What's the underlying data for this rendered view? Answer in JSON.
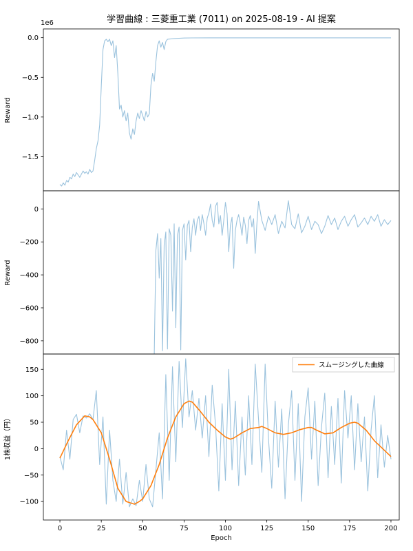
{
  "title": "学習曲線 : 三菱重工業 (7011) on 2025-08-19 - AI 提案",
  "colors": {
    "raw_line": "#1f77b4",
    "smooth_line": "#ff7f0e",
    "axis": "#000000"
  },
  "chart_data": [
    {
      "type": "line",
      "ylabel": "Reward",
      "y_offset_label": "1e6",
      "ylim": [
        -1.93,
        0.11
      ],
      "yticks": [
        0.0,
        -0.5,
        -1.0,
        -1.5
      ],
      "ytick_labels": [
        "0.0",
        "−0.5",
        "−1.0",
        "−1.5"
      ],
      "xlim": [
        -10,
        205
      ],
      "grid": false,
      "series": [
        {
          "name": "reward-raw",
          "color": "#1f77b4",
          "opacity": 0.45,
          "width": 1.1,
          "x": [
            0,
            1,
            2,
            3,
            4,
            5,
            6,
            7,
            8,
            9,
            10,
            11,
            12,
            13,
            14,
            15,
            16,
            17,
            18,
            19,
            20,
            21,
            22,
            23,
            24,
            25,
            26,
            27,
            28,
            29,
            30,
            31,
            32,
            33,
            34,
            35,
            36,
            37,
            38,
            39,
            40,
            41,
            42,
            43,
            44,
            45,
            46,
            47,
            48,
            49,
            50,
            51,
            52,
            53,
            54,
            55,
            56,
            57,
            58,
            59,
            60,
            61,
            62,
            63,
            64,
            65,
            70,
            75,
            80,
            90,
            100,
            110,
            120,
            130,
            140,
            150,
            160,
            170,
            180,
            190,
            200
          ],
          "y": [
            -1.85,
            -1.87,
            -1.83,
            -1.86,
            -1.8,
            -1.82,
            -1.76,
            -1.78,
            -1.72,
            -1.75,
            -1.7,
            -1.73,
            -1.76,
            -1.72,
            -1.68,
            -1.71,
            -1.69,
            -1.72,
            -1.66,
            -1.7,
            -1.68,
            -1.55,
            -1.4,
            -1.3,
            -1.1,
            -0.6,
            -0.15,
            -0.04,
            -0.02,
            -0.05,
            -0.02,
            -0.1,
            -0.04,
            -0.25,
            -0.1,
            -0.45,
            -0.9,
            -0.85,
            -1.0,
            -0.92,
            -1.05,
            -0.95,
            -1.2,
            -1.28,
            -1.15,
            -1.22,
            -1.05,
            -0.95,
            -1.02,
            -0.92,
            -0.98,
            -1.05,
            -0.93,
            -1.0,
            -0.96,
            -0.6,
            -0.45,
            -0.55,
            -0.3,
            -0.1,
            -0.04,
            -0.12,
            -0.06,
            -0.15,
            -0.05,
            -0.02,
            -0.01,
            -0.005,
            -0.003,
            -0.002,
            -0.002,
            -0.002,
            -0.002,
            -0.002,
            -0.002,
            -0.002,
            -0.002,
            -0.002,
            -0.002,
            -0.002,
            -0.002
          ]
        }
      ]
    },
    {
      "type": "line",
      "ylabel": "Reward",
      "ylim": [
        -880,
        110
      ],
      "yticks": [
        0,
        -200,
        -400,
        -600,
        -800
      ],
      "ytick_labels": [
        "0",
        "−200",
        "−400",
        "−600",
        "−800"
      ],
      "xlim": [
        -10,
        205
      ],
      "grid": false,
      "series": [
        {
          "name": "reward-zoom",
          "color": "#1f77b4",
          "opacity": 0.45,
          "width": 1.1,
          "x": [
            57,
            58,
            59,
            60,
            61,
            62,
            63,
            64,
            65,
            66,
            67,
            68,
            69,
            70,
            71,
            72,
            73,
            74,
            75,
            76,
            77,
            78,
            79,
            80,
            81,
            82,
            83,
            84,
            85,
            86,
            87,
            88,
            89,
            90,
            91,
            92,
            93,
            94,
            95,
            96,
            97,
            98,
            99,
            100,
            101,
            102,
            103,
            104,
            105,
            106,
            107,
            108,
            109,
            110,
            111,
            112,
            113,
            114,
            115,
            116,
            117,
            118,
            119,
            120,
            122,
            124,
            126,
            128,
            130,
            132,
            134,
            136,
            138,
            140,
            142,
            144,
            146,
            148,
            150,
            152,
            154,
            156,
            158,
            160,
            162,
            164,
            166,
            168,
            170,
            172,
            174,
            176,
            178,
            180,
            182,
            184,
            186,
            188,
            190,
            192,
            194,
            196,
            198,
            200
          ],
          "y": [
            -880,
            -250,
            -150,
            -420,
            -180,
            -860,
            -220,
            -140,
            -850,
            -120,
            -160,
            -620,
            -90,
            -720,
            -160,
            -110,
            -855,
            -130,
            -90,
            -310,
            -100,
            -70,
            -260,
            -110,
            -60,
            -160,
            -70,
            -45,
            -130,
            -35,
            -90,
            -160,
            -55,
            -25,
            30,
            -70,
            -110,
            15,
            40,
            -90,
            -40,
            -160,
            -70,
            40,
            -30,
            -260,
            -100,
            -50,
            -360,
            -130,
            -70,
            -35,
            -90,
            -160,
            -50,
            -100,
            -210,
            -70,
            -40,
            -110,
            -60,
            -270,
            -90,
            45,
            -70,
            -130,
            -45,
            -95,
            -35,
            -150,
            -75,
            -115,
            50,
            -95,
            -120,
            -30,
            -145,
            -105,
            -45,
            -125,
            -75,
            -95,
            -150,
            -105,
            -40,
            -95,
            -55,
            -125,
            -75,
            -45,
            -105,
            -65,
            -35,
            -110,
            -85,
            -55,
            -95,
            -45,
            -75,
            -35,
            -105,
            -65,
            -95,
            -70
          ]
        }
      ]
    },
    {
      "type": "line",
      "ylabel": "1株収益（円）",
      "xlabel": "Epoch",
      "ylim": [
        -135,
        179
      ],
      "yticks": [
        150,
        100,
        50,
        0,
        -50,
        -100
      ],
      "ytick_labels": [
        "150",
        "100",
        "50",
        "0",
        "−50",
        "−100"
      ],
      "xlim": [
        -10,
        205
      ],
      "xticks": [
        0,
        25,
        50,
        75,
        100,
        125,
        150,
        175,
        200
      ],
      "xtick_labels": [
        "0",
        "25",
        "50",
        "75",
        "100",
        "125",
        "150",
        "175",
        "200"
      ],
      "grid": false,
      "legend": {
        "label": "スムージングした曲線",
        "color": "#ff7f0e",
        "position": "upper right"
      },
      "series": [
        {
          "name": "eps-raw",
          "color": "#1f77b4",
          "opacity": 0.45,
          "width": 1.1,
          "x": [
            0,
            2,
            4,
            6,
            8,
            10,
            12,
            14,
            16,
            18,
            20,
            22,
            24,
            26,
            28,
            30,
            32,
            34,
            36,
            38,
            40,
            42,
            44,
            46,
            48,
            50,
            52,
            54,
            56,
            58,
            60,
            62,
            64,
            66,
            68,
            70,
            72,
            74,
            76,
            78,
            80,
            82,
            84,
            86,
            88,
            90,
            92,
            94,
            96,
            98,
            100,
            102,
            104,
            106,
            108,
            110,
            112,
            114,
            116,
            118,
            120,
            122,
            124,
            126,
            128,
            130,
            132,
            134,
            136,
            138,
            140,
            142,
            144,
            146,
            148,
            150,
            152,
            154,
            156,
            158,
            160,
            162,
            164,
            166,
            168,
            170,
            172,
            174,
            176,
            178,
            180,
            182,
            184,
            186,
            188,
            190,
            192,
            194,
            196,
            198,
            200
          ],
          "y": [
            -15,
            -40,
            35,
            -20,
            55,
            65,
            30,
            62,
            58,
            66,
            55,
            110,
            -30,
            60,
            -105,
            35,
            -60,
            -100,
            -20,
            -105,
            -45,
            -110,
            -95,
            -108,
            -60,
            -100,
            -30,
            -95,
            -110,
            -40,
            30,
            -95,
            140,
            -60,
            155,
            -25,
            165,
            40,
            170,
            60,
            110,
            35,
            95,
            20,
            100,
            -15,
            120,
            45,
            -80,
            85,
            -60,
            150,
            -40,
            90,
            -70,
            60,
            -50,
            100,
            -30,
            160,
            55,
            -45,
            160,
            20,
            -75,
            90,
            -35,
            75,
            -95,
            45,
            110,
            -60,
            85,
            -100,
            60,
            115,
            -20,
            90,
            -70,
            40,
            105,
            -55,
            80,
            -30,
            95,
            -65,
            110,
            20,
            100,
            -40,
            85,
            -25,
            60,
            -80,
            35,
            100,
            -55,
            45,
            -35,
            25,
            -20
          ]
        },
        {
          "name": "eps-smoothed",
          "color": "#ff7f0e",
          "opacity": 1,
          "width": 1.6,
          "x": [
            0,
            5,
            10,
            15,
            18,
            20,
            25,
            30,
            35,
            40,
            45,
            48,
            50,
            55,
            60,
            65,
            70,
            75,
            78,
            80,
            85,
            90,
            95,
            100,
            103,
            105,
            110,
            115,
            120,
            122,
            125,
            130,
            135,
            140,
            145,
            150,
            152,
            155,
            160,
            165,
            170,
            175,
            178,
            180,
            185,
            190,
            195,
            200
          ],
          "y": [
            -18,
            15,
            45,
            62,
            60,
            55,
            30,
            -20,
            -75,
            -100,
            -105,
            -100,
            -95,
            -70,
            -30,
            20,
            60,
            85,
            90,
            88,
            70,
            50,
            35,
            22,
            18,
            20,
            30,
            38,
            40,
            42,
            38,
            30,
            27,
            30,
            36,
            40,
            40,
            35,
            28,
            30,
            40,
            48,
            50,
            48,
            35,
            15,
            0,
            -15
          ]
        }
      ]
    }
  ]
}
